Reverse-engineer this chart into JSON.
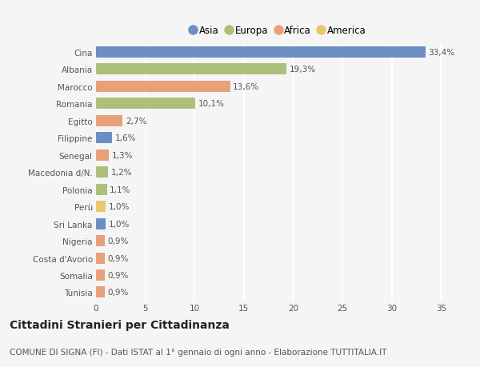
{
  "categories": [
    "Tunisia",
    "Somalia",
    "Costa d'Avorio",
    "Nigeria",
    "Sri Lanka",
    "Perù",
    "Polonia",
    "Macedonia d/N.",
    "Senegal",
    "Filippine",
    "Egitto",
    "Romania",
    "Marocco",
    "Albania",
    "Cina"
  ],
  "values": [
    0.9,
    0.9,
    0.9,
    0.9,
    1.0,
    1.0,
    1.1,
    1.2,
    1.3,
    1.6,
    2.7,
    10.1,
    13.6,
    19.3,
    33.4
  ],
  "labels": [
    "0,9%",
    "0,9%",
    "0,9%",
    "0,9%",
    "1,0%",
    "1,0%",
    "1,1%",
    "1,2%",
    "1,3%",
    "1,6%",
    "2,7%",
    "10,1%",
    "13,6%",
    "19,3%",
    "33,4%"
  ],
  "colors": [
    "#e8a07a",
    "#e8a07a",
    "#e8a07a",
    "#e8a07a",
    "#6b8fc4",
    "#e8c86a",
    "#adc07a",
    "#adc07a",
    "#e8a07a",
    "#6b8fc4",
    "#e8a07a",
    "#adc07a",
    "#e8a07a",
    "#adc07a",
    "#6b8fc4"
  ],
  "continent_colors": {
    "Asia": "#6b8fc4",
    "Europa": "#adc07a",
    "Africa": "#e8a07a",
    "America": "#e8c86a"
  },
  "title": "Cittadini Stranieri per Cittadinanza",
  "subtitle": "COMUNE DI SIGNA (FI) - Dati ISTAT al 1° gennaio di ogni anno - Elaborazione TUTTITALIA.IT",
  "xlim": [
    0,
    37
  ],
  "xticks": [
    0,
    5,
    10,
    15,
    20,
    25,
    30,
    35
  ],
  "background_color": "#f5f5f5",
  "grid_color": "#ffffff",
  "bar_height": 0.65,
  "title_fontsize": 10,
  "subtitle_fontsize": 7.5,
  "tick_fontsize": 7.5,
  "label_fontsize": 7.5
}
